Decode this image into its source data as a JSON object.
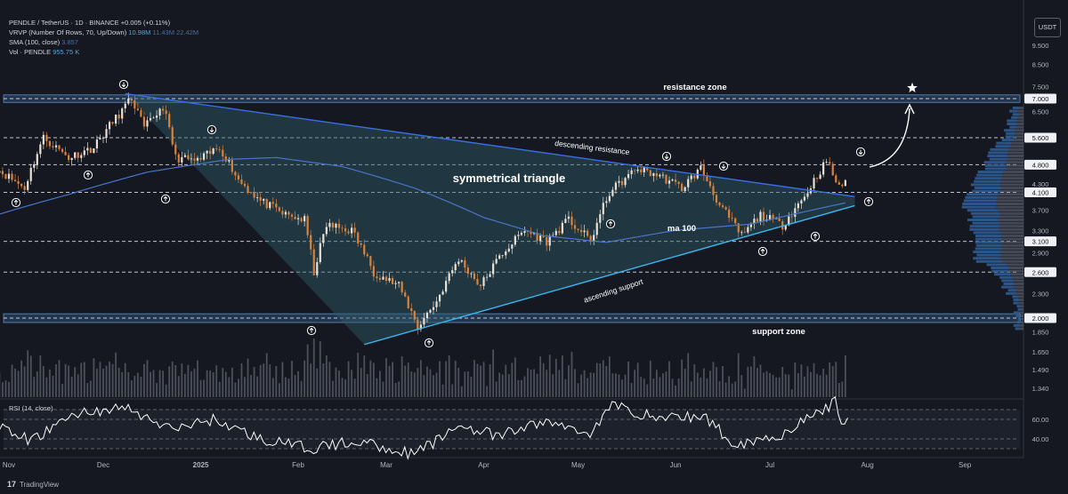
{
  "legend": {
    "symbol_line": "PENDLE / TetherUS · 1D · BINANCE",
    "change": "+0.005 (+0.11%)",
    "vrvp_label": "VRVP (Number Of Rows, 70, Up/Down)",
    "vrvp_values": [
      "10.98M",
      "11.43M",
      "22.42M"
    ],
    "sma_label": "SMA (100, close)",
    "sma_value": "3.857",
    "vol_label": "Vol · PENDLE",
    "vol_value": "955.75 K"
  },
  "currency": "USDT",
  "rsi_label": "RSI (14, close)",
  "brand": "TradingView",
  "colors": {
    "background": "#151821",
    "candle_up": "#e8e2d6",
    "candle_down": "#d9823b",
    "resistance_line": "#3a6ee8",
    "support_line": "#39b7f0",
    "sma": "#4a74c9",
    "zone": "#3e6fa6",
    "triangle_fill": "#2e5d6a",
    "rsi_line": "#ffffff"
  },
  "chart_data": {
    "type": "candlestick",
    "y_scale": "log",
    "price_axis_labels": [
      "9.500",
      "8.500",
      "7.500",
      "7.000",
      "6.500",
      "5.600",
      "4.800",
      "4.300",
      "4.100",
      "3.700",
      "3.300",
      "3.100",
      "2.900",
      "2.600",
      "2.300",
      "2.000",
      "1.850",
      "1.650",
      "1.490",
      "1.340"
    ],
    "x_tick_labels": [
      "Nov",
      "Dec",
      "2025",
      "Feb",
      "Mar",
      "Apr",
      "May",
      "Jun",
      "Jul",
      "Aug",
      "Sep"
    ],
    "horizontal_levels": [
      7.0,
      5.6,
      4.8,
      4.1,
      3.1,
      2.6,
      2.0
    ],
    "zones": [
      {
        "label": "resistance zone",
        "low": 6.85,
        "high": 7.15
      },
      {
        "label": "support zone",
        "low": 1.95,
        "high": 2.05
      }
    ],
    "annotations": [
      "symmetrical triangle",
      "descending resistance",
      "ascending support",
      "ma 100",
      "resistance zone",
      "support zone"
    ],
    "trendlines": [
      {
        "name": "descending resistance",
        "from": [
          "2024-12-08",
          7.2
        ],
        "to": [
          "2025-07-28",
          4.0
        ]
      },
      {
        "name": "ascending support",
        "from": [
          "2025-02-22",
          1.72
        ],
        "to": [
          "2025-07-28",
          3.8
        ]
      }
    ],
    "rsi_levels": [
      70,
      60,
      40,
      30
    ],
    "rsi_axis_labels": [
      "60.00",
      "40.00"
    ],
    "anchor_prices": [
      [
        "2024-10-28",
        4.7
      ],
      [
        "2024-11-06",
        4.2
      ],
      [
        "2024-11-12",
        5.6
      ],
      [
        "2024-11-20",
        5.0
      ],
      [
        "2024-11-28",
        5.3
      ],
      [
        "2024-12-06",
        6.4
      ],
      [
        "2024-12-10",
        7.0
      ],
      [
        "2024-12-14",
        5.9
      ],
      [
        "2024-12-20",
        6.7
      ],
      [
        "2024-12-24",
        5.0
      ],
      [
        "2024-12-31",
        4.9
      ],
      [
        "2025-01-07",
        5.3
      ],
      [
        "2025-01-13",
        4.4
      ],
      [
        "2025-01-20",
        3.9
      ],
      [
        "2025-01-28",
        3.6
      ],
      [
        "2025-02-03",
        3.5
      ],
      [
        "2025-02-06",
        2.6
      ],
      [
        "2025-02-10",
        3.4
      ],
      [
        "2025-02-18",
        3.3
      ],
      [
        "2025-02-25",
        2.6
      ],
      [
        "2025-03-05",
        2.4
      ],
      [
        "2025-03-11",
        1.9
      ],
      [
        "2025-03-17",
        2.2
      ],
      [
        "2025-03-24",
        2.8
      ],
      [
        "2025-03-31",
        2.4
      ],
      [
        "2025-04-07",
        2.9
      ],
      [
        "2025-04-14",
        3.3
      ],
      [
        "2025-04-21",
        3.1
      ],
      [
        "2025-04-28",
        3.5
      ],
      [
        "2025-05-05",
        3.1
      ],
      [
        "2025-05-11",
        4.1
      ],
      [
        "2025-05-20",
        4.7
      ],
      [
        "2025-05-27",
        4.5
      ],
      [
        "2025-06-03",
        4.2
      ],
      [
        "2025-06-09",
        4.7
      ],
      [
        "2025-06-15",
        3.8
      ],
      [
        "2025-06-22",
        3.2
      ],
      [
        "2025-06-28",
        3.6
      ],
      [
        "2025-07-05",
        3.4
      ],
      [
        "2025-07-12",
        4.0
      ],
      [
        "2025-07-19",
        4.9
      ],
      [
        "2025-07-23",
        4.2
      ],
      [
        "2025-07-25",
        4.4
      ]
    ],
    "sma_anchors": [
      [
        "2024-10-28",
        3.6
      ],
      [
        "2024-11-20",
        4.05
      ],
      [
        "2024-12-15",
        4.6
      ],
      [
        "2025-01-10",
        4.95
      ],
      [
        "2025-01-25",
        5.0
      ],
      [
        "2025-02-15",
        4.75
      ],
      [
        "2025-03-10",
        4.2
      ],
      [
        "2025-04-01",
        3.55
      ],
      [
        "2025-04-20",
        3.2
      ],
      [
        "2025-05-10",
        3.08
      ],
      [
        "2025-06-01",
        3.3
      ],
      [
        "2025-06-25",
        3.42
      ],
      [
        "2025-07-25",
        3.86
      ]
    ],
    "rsi_anchors": [
      [
        "2024-10-28",
        52
      ],
      [
        "2024-11-08",
        38
      ],
      [
        "2024-11-22",
        66
      ],
      [
        "2024-12-08",
        72
      ],
      [
        "2024-12-22",
        50
      ],
      [
        "2025-01-05",
        60
      ],
      [
        "2025-01-20",
        40
      ],
      [
        "2025-02-05",
        30
      ],
      [
        "2025-02-20",
        38
      ],
      [
        "2025-03-10",
        24
      ],
      [
        "2025-03-25",
        55
      ],
      [
        "2025-04-05",
        42
      ],
      [
        "2025-04-20",
        58
      ],
      [
        "2025-05-05",
        46
      ],
      [
        "2025-05-12",
        75
      ],
      [
        "2025-05-25",
        62
      ],
      [
        "2025-06-10",
        63
      ],
      [
        "2025-06-20",
        34
      ],
      [
        "2025-07-05",
        45
      ],
      [
        "2025-07-14",
        62
      ],
      [
        "2025-07-22",
        78
      ],
      [
        "2025-07-24",
        54
      ],
      [
        "2025-07-26",
        60
      ]
    ]
  }
}
